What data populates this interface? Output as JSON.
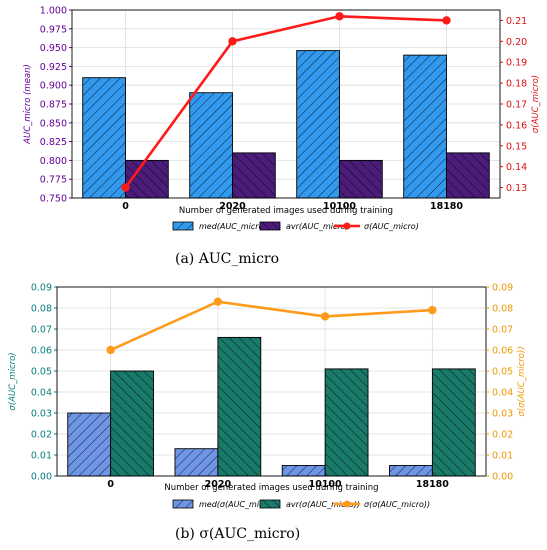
{
  "chart_data": [
    {
      "type": "bar",
      "caption": "(a) AUC_micro",
      "categories": [
        "0",
        "2020",
        "10100",
        "18180"
      ],
      "xlabel": "Number of generated images used during training",
      "ylabel": "AUC_micro (mean)",
      "ylabel_right": "σ(AUC_micro)",
      "ylim": [
        0.75,
        1.0
      ],
      "ylim_right": [
        0.125,
        0.215
      ],
      "y_ticks": [
        "0.750",
        "0.775",
        "0.800",
        "0.825",
        "0.850",
        "0.875",
        "0.900",
        "0.925",
        "0.950",
        "0.975",
        "1.000"
      ],
      "y_ticks_right": [
        "0.13",
        "0.14",
        "0.15",
        "0.16",
        "0.17",
        "0.18",
        "0.19",
        "0.20",
        "0.21"
      ],
      "series": [
        {
          "name": "med(AUC_micro)",
          "kind": "bar",
          "color": "#3399ee",
          "values": [
            0.91,
            0.89,
            0.946,
            0.94
          ]
        },
        {
          "name": "avr(AUC_micro)",
          "kind": "bar",
          "color": "#4b1c7a",
          "values": [
            0.8,
            0.81,
            0.8,
            0.81
          ]
        },
        {
          "name": "σ(AUC_micro)",
          "kind": "line",
          "axis": "right",
          "color": "#ff1a1a",
          "values": [
            0.13,
            0.2,
            0.212,
            0.21
          ]
        }
      ],
      "axis_color_left": "#660099",
      "axis_color_right": "#dd1111",
      "grid": true,
      "legend_position": "bottom"
    },
    {
      "type": "bar",
      "caption": "(b) σ(AUC_micro)",
      "categories": [
        "0",
        "2020",
        "10100",
        "18180"
      ],
      "xlabel": "Number of generated images used during training",
      "ylabel": "σ(AUC_micro)",
      "ylabel_right": "σ(σ(AUC_micro))",
      "ylim": [
        0,
        0.09
      ],
      "ylim_right": [
        0,
        0.09
      ],
      "y_ticks": [
        "0.00",
        "0.01",
        "0.02",
        "0.03",
        "0.04",
        "0.05",
        "0.06",
        "0.07",
        "0.08",
        "0.09"
      ],
      "y_ticks_right": [
        "0.00",
        "0.01",
        "0.02",
        "0.03",
        "0.04",
        "0.05",
        "0.06",
        "0.07",
        "0.08",
        "0.09"
      ],
      "series": [
        {
          "name": "med(σ(AUC_micro))",
          "kind": "bar",
          "color": "#6f95e6",
          "values": [
            0.03,
            0.013,
            0.005,
            0.005
          ]
        },
        {
          "name": "avr(σ(AUC_micro))",
          "kind": "bar",
          "color": "#1a7a6a",
          "values": [
            0.05,
            0.066,
            0.051,
            0.051
          ]
        },
        {
          "name": "σ(σ(AUC_micro))",
          "kind": "line",
          "axis": "right",
          "color": "#ff9a1a",
          "values": [
            0.06,
            0.083,
            0.076,
            0.079
          ]
        }
      ],
      "axis_color_left": "#0a8080",
      "axis_color_right": "#ee9900",
      "grid": true,
      "legend_position": "bottom"
    }
  ]
}
